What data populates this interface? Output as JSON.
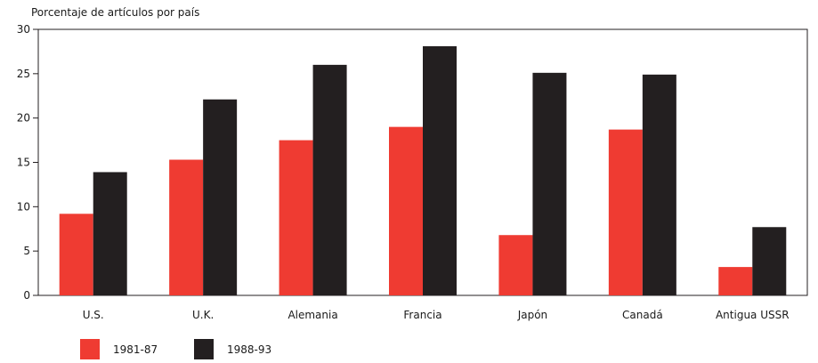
{
  "chart_data": {
    "type": "bar",
    "ylabel": "Porcentaje de artículos por país",
    "ylim": [
      0,
      30
    ],
    "yticks": [
      0,
      5,
      10,
      15,
      20,
      25,
      30
    ],
    "categories": [
      "U.S.",
      "U.K.",
      "Alemania",
      "Francia",
      "Japón",
      "Canadá",
      "Antigua USSR"
    ],
    "series": [
      {
        "name": "1981-87",
        "color": "#ef3b32",
        "values": [
          9.2,
          15.3,
          17.5,
          19.0,
          6.8,
          18.7,
          3.2
        ]
      },
      {
        "name": "1988-93",
        "color": "#231f20",
        "values": [
          13.9,
          22.1,
          26.0,
          28.1,
          25.1,
          24.9,
          7.7
        ]
      }
    ],
    "grid": false,
    "legend_position": "bottom-left"
  }
}
